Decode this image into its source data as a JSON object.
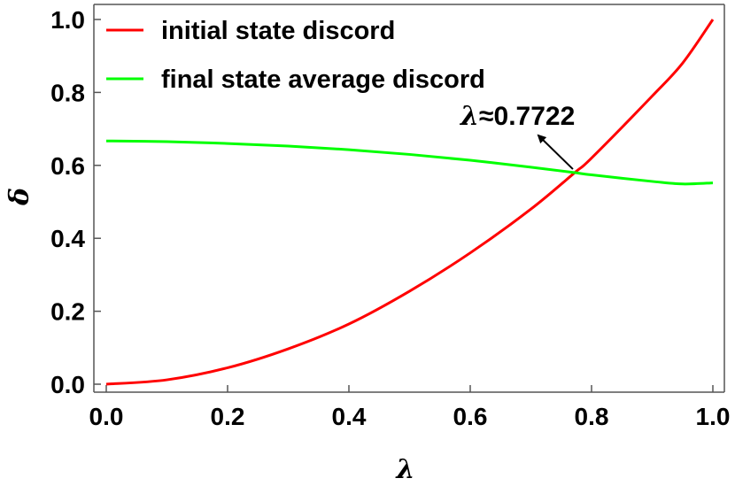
{
  "chart_data": {
    "type": "line",
    "xlabel": "λ",
    "ylabel": "δ",
    "xlim": [
      0,
      1
    ],
    "ylim": [
      0,
      1
    ],
    "x_ticks": [
      "0.0",
      "0.2",
      "0.4",
      "0.6",
      "0.8",
      "1.0"
    ],
    "y_ticks": [
      "0.0",
      "0.2",
      "0.4",
      "0.6",
      "0.8",
      "1.0"
    ],
    "grid": false,
    "legend_position": "top-left",
    "series": [
      {
        "name": "initial state discord",
        "color": "#ff0000",
        "x": [
          0,
          0.1,
          0.2,
          0.3,
          0.4,
          0.5,
          0.6,
          0.7,
          0.7722,
          0.8,
          0.9,
          0.95,
          1.0
        ],
        "y": [
          0,
          0.012,
          0.045,
          0.097,
          0.165,
          0.255,
          0.36,
          0.48,
          0.58,
          0.62,
          0.79,
          0.88,
          1.0
        ]
      },
      {
        "name": "final state average discord",
        "color": "#00ff00",
        "x": [
          0,
          0.1,
          0.2,
          0.3,
          0.4,
          0.5,
          0.6,
          0.7,
          0.7722,
          0.8,
          0.9,
          0.95,
          1.0
        ],
        "y": [
          0.667,
          0.665,
          0.66,
          0.653,
          0.643,
          0.63,
          0.614,
          0.595,
          0.58,
          0.574,
          0.556,
          0.549,
          0.552
        ]
      }
    ],
    "annotation": {
      "symbol": "λ",
      "text": "≈0.7722",
      "point": [
        0.7722,
        0.58
      ]
    }
  }
}
